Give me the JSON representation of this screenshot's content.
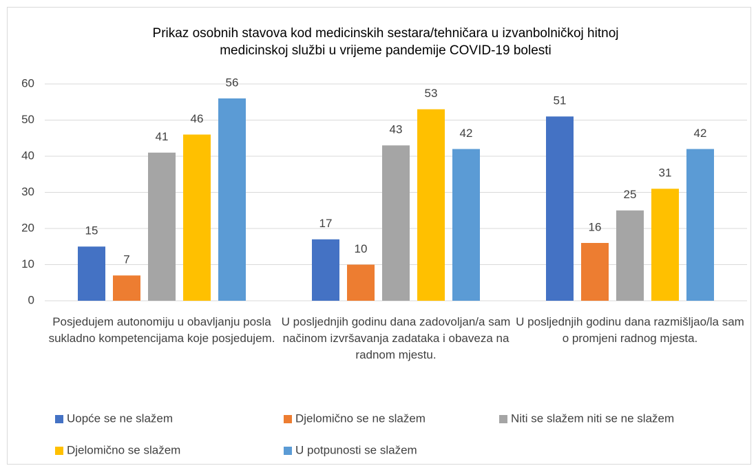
{
  "chart_data": {
    "type": "bar",
    "title": [
      "Prikaz osobnih stavova kod medicinskih sestara/tehničara u izvanbolničkoj hitnoj",
      "medicinskoj službi u vrijeme pandemije COVID-19 bolesti"
    ],
    "categories": [
      "Posjedujem autonomiju u obavljanju posla sukladno kompetencijama koje posjedujem.",
      "U posljednjih godinu dana zadovoljan/a sam načinom izvršavanja zadataka i obaveza na radnom mjestu.",
      "U posljednjih godinu dana razmišljao/la sam o promjeni radnog mjesta."
    ],
    "series": [
      {
        "name": "Uopće se ne slažem",
        "color": "#4472c4",
        "values": [
          15,
          17,
          51
        ]
      },
      {
        "name": "Djelomično se ne slažem",
        "color": "#ed7d31",
        "values": [
          7,
          10,
          16
        ]
      },
      {
        "name": "Niti se slažem niti se ne slažem",
        "color": "#a5a5a5",
        "values": [
          41,
          43,
          25
        ]
      },
      {
        "name": "Djelomično se slažem",
        "color": "#ffc000",
        "values": [
          46,
          53,
          31
        ]
      },
      {
        "name": "U potpunosti se slažem",
        "color": "#5b9bd5",
        "values": [
          56,
          42,
          42
        ]
      }
    ],
    "ylim": [
      0,
      60
    ],
    "yticks": [
      0,
      10,
      20,
      30,
      40,
      50,
      60
    ],
    "grid": true,
    "legend": "bottom"
  }
}
